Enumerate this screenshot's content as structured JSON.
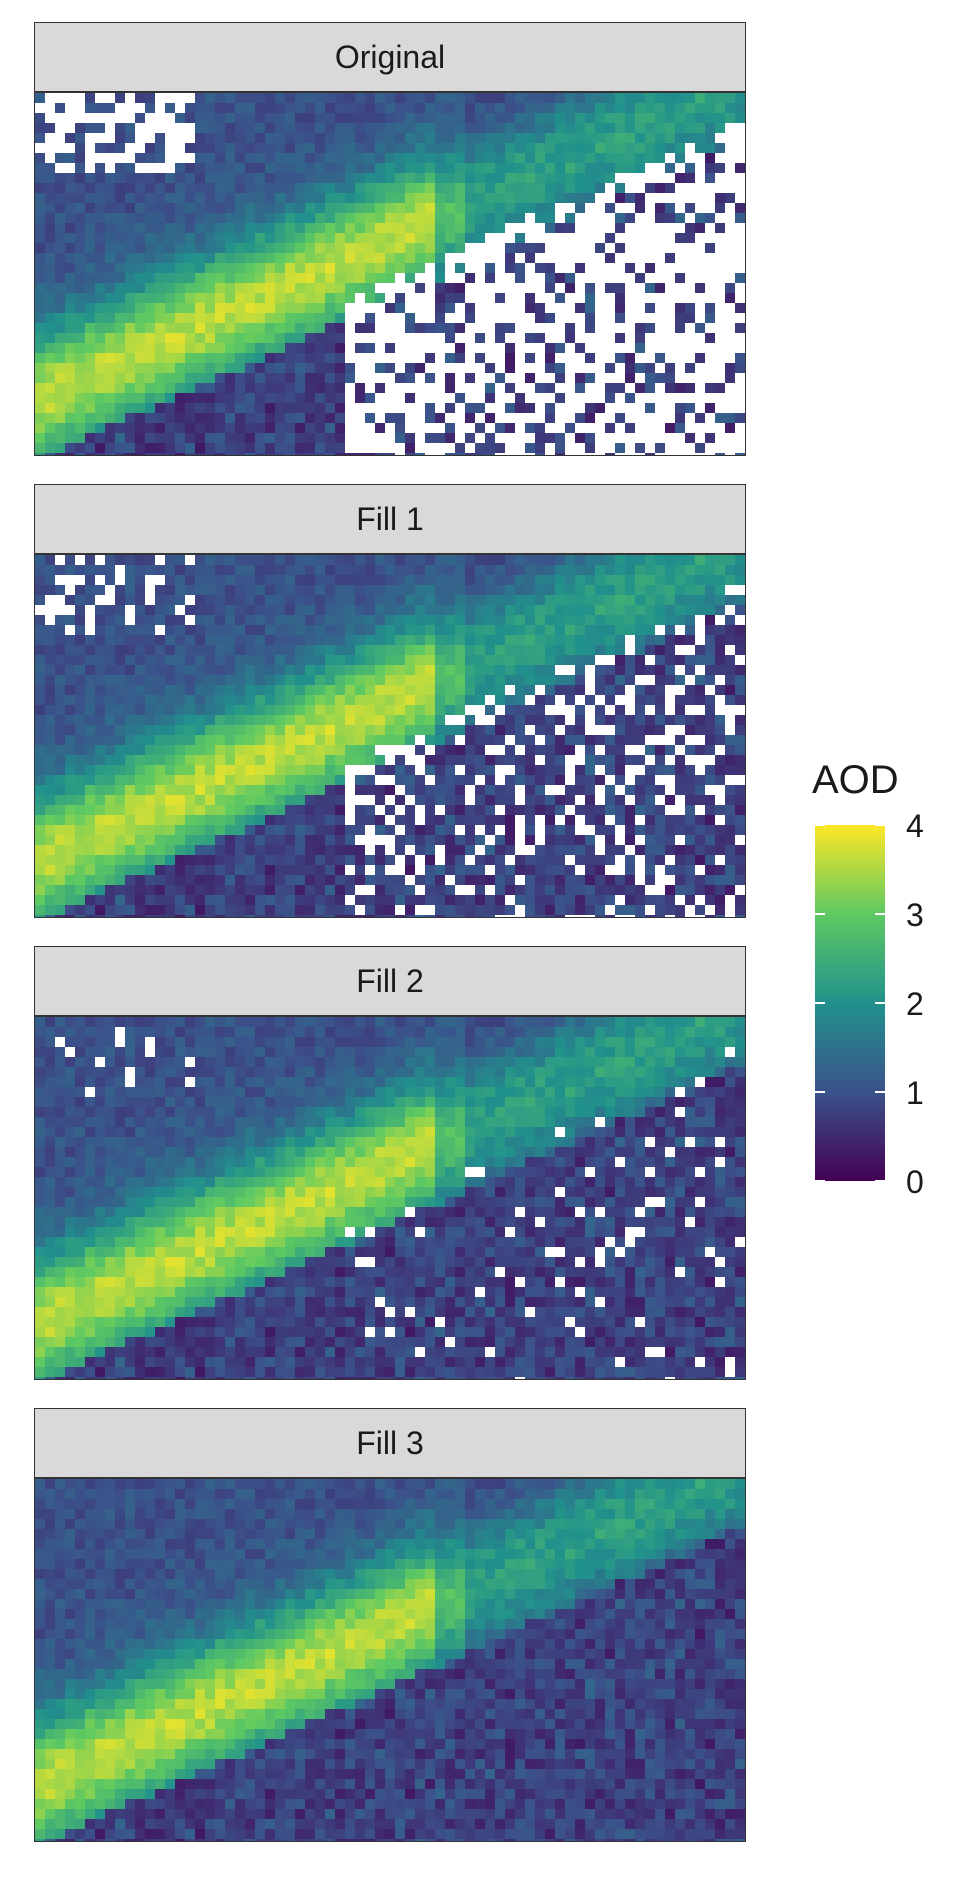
{
  "chart_data": {
    "type": "heatmap",
    "panels": [
      {
        "title": "Original",
        "missing": 0.22
      },
      {
        "title": "Fill 1",
        "missing": 0.09
      },
      {
        "title": "Fill 2",
        "missing": 0.025
      },
      {
        "title": "Fill 3",
        "missing": 0.0
      }
    ],
    "legend": {
      "title": "AOD",
      "ticks": [
        "4",
        "3",
        "2",
        "1",
        "0"
      ],
      "range": [
        0,
        4
      ],
      "colors": [
        "#fde725",
        "#5ec962",
        "#21918c",
        "#3b528b",
        "#440154"
      ]
    }
  }
}
